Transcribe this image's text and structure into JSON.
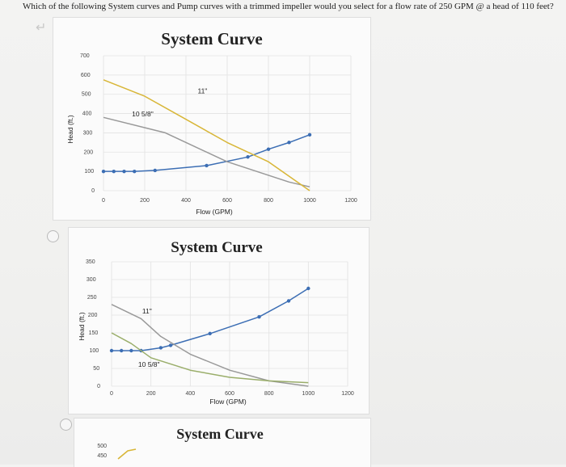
{
  "question": "Which of the following System curves and Pump curves with a trimmed impeller would you select for a flow rate of 250 GPM @ a head of 110 feet?",
  "colors": {
    "system": "#3c6eb4",
    "full_impeller": "#999999",
    "trimmed_impeller": "#d8b637",
    "trimmed_impeller_2": "#9aae6a",
    "grid": "#e2e2e2"
  },
  "icons": {
    "cursor": "cursor-icon",
    "radio": "radio-icon"
  },
  "chart_data": [
    {
      "type": "line",
      "title": "System Curve",
      "xlabel": "Flow (GPM)",
      "ylabel": "Head (ft.)",
      "xlim": [
        0,
        1200
      ],
      "ylim": [
        0,
        700
      ],
      "xticks": [
        "0",
        "200",
        "400",
        "600",
        "800",
        "1000",
        "1200"
      ],
      "yticks": [
        "0",
        "100",
        "200",
        "300",
        "400",
        "500",
        "600",
        "700"
      ],
      "grid": true,
      "annotations": [
        {
          "text": "10 5/8\"",
          "x": 190,
          "y": 385
        },
        {
          "text": "11\"",
          "x": 480,
          "y": 505
        }
      ],
      "series": [
        {
          "role": "system",
          "markers": true,
          "x": [
            0,
            50,
            100,
            150,
            250,
            500,
            700,
            800,
            900,
            1000
          ],
          "y": [
            100,
            100,
            100,
            100,
            105,
            130,
            175,
            215,
            250,
            290
          ]
        },
        {
          "role": "full_impeller",
          "markers": false,
          "x": [
            0,
            300,
            600,
            900,
            1000
          ],
          "y": [
            380,
            300,
            150,
            45,
            20
          ]
        },
        {
          "role": "trimmed_impeller",
          "markers": false,
          "x": [
            0,
            200,
            400,
            600,
            800,
            1000
          ],
          "y": [
            575,
            490,
            370,
            250,
            150,
            0
          ]
        }
      ]
    },
    {
      "type": "line",
      "title": "System Curve",
      "xlabel": "Flow (GPM)",
      "ylabel": "Head (ft.)",
      "xlim": [
        0,
        1200
      ],
      "ylim": [
        0,
        350
      ],
      "xticks": [
        "0",
        "200",
        "400",
        "600",
        "800",
        "1000",
        "1200"
      ],
      "yticks": [
        "0",
        "50",
        "100",
        "150",
        "200",
        "250",
        "300",
        "350"
      ],
      "grid": true,
      "annotations": [
        {
          "text": "11\"",
          "x": 180,
          "y": 205
        },
        {
          "text": "10 5/8\"",
          "x": 190,
          "y": 55
        }
      ],
      "series": [
        {
          "role": "system",
          "markers": true,
          "x": [
            0,
            50,
            100,
            150,
            250,
            300,
            500,
            750,
            900,
            1000
          ],
          "y": [
            100,
            100,
            100,
            100,
            108,
            115,
            148,
            195,
            240,
            275
          ]
        },
        {
          "role": "full_impeller",
          "markers": false,
          "x": [
            0,
            150,
            250,
            400,
            600,
            800,
            1000
          ],
          "y": [
            230,
            190,
            140,
            90,
            45,
            15,
            0
          ]
        },
        {
          "role": "trimmed_impeller_2",
          "markers": false,
          "x": [
            0,
            100,
            200,
            400,
            600,
            800,
            1000
          ],
          "y": [
            150,
            120,
            80,
            45,
            25,
            15,
            10
          ]
        }
      ]
    },
    {
      "type": "line",
      "title": "System Curve",
      "xlabel": "",
      "ylabel": "",
      "yticks_visible": [
        "500",
        "450"
      ],
      "series": [
        {
          "role": "trimmed_impeller",
          "markers": false,
          "x": [
            0,
            40
          ],
          "y": [
            470,
            440
          ]
        }
      ]
    }
  ]
}
